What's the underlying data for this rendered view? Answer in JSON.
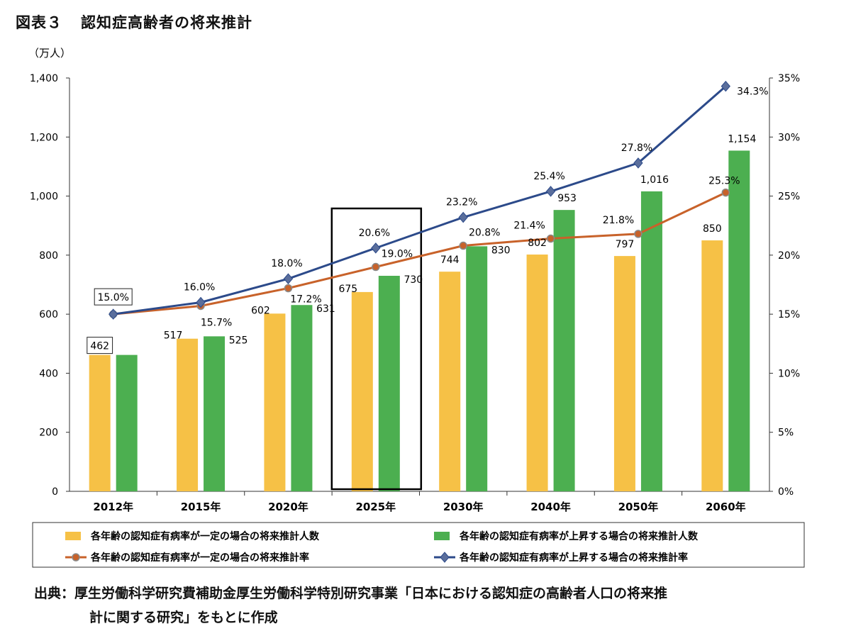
{
  "header": {
    "figure_no": "図表３",
    "title": "認知症高齢者の将来推計"
  },
  "chart_data": {
    "type": "bar",
    "title": "認知症高齢者の将来推計",
    "y_unit_label": "（万人）",
    "categories": [
      "2012年",
      "2015年",
      "2020年",
      "2025年",
      "2030年",
      "2040年",
      "2050年",
      "2060年"
    ],
    "y_left": {
      "min": 0,
      "max": 1400,
      "ticks": [
        "0",
        "200",
        "400",
        "600",
        "800",
        "1,000",
        "1,200",
        "1,400"
      ]
    },
    "y_right": {
      "min": 0,
      "max": 35,
      "ticks": [
        "0%",
        "5%",
        "10%",
        "15%",
        "20%",
        "25%",
        "30%",
        "35%"
      ]
    },
    "series": [
      {
        "name": "各年齢の認知症有病率が一定の場合の将来推計人数",
        "kind": "bar",
        "axis": "left",
        "color": "#f6c146",
        "values": [
          462,
          517,
          602,
          675,
          744,
          802,
          797,
          850
        ],
        "labels": [
          "462",
          "517",
          "602",
          "675",
          "744",
          "802",
          "797",
          "850"
        ]
      },
      {
        "name": "各年齢の認知症有病率が上昇する場合の将来推計人数",
        "kind": "bar",
        "axis": "left",
        "color": "#4caf50",
        "values": [
          462,
          525,
          631,
          730,
          830,
          953,
          1016,
          1154
        ],
        "labels": [
          "",
          "525",
          "631",
          "730",
          "830",
          "953",
          "1,016",
          "1,154"
        ]
      },
      {
        "name": "各年齢の認知症有病率が一定の場合の将来推計率",
        "kind": "line",
        "axis": "right",
        "color": "#c8622a",
        "values": [
          15.0,
          15.7,
          17.2,
          19.0,
          20.8,
          21.4,
          21.8,
          25.3
        ],
        "labels": [
          "",
          "15.7%",
          "17.2%",
          "19.0%",
          "20.8%",
          "21.4%",
          "21.8%",
          "25.3%"
        ]
      },
      {
        "name": "各年齢の認知症有病率が上昇する場合の将来推計率",
        "kind": "line",
        "axis": "right",
        "color": "#2c4a8a",
        "values": [
          15.0,
          16.0,
          18.0,
          20.6,
          23.2,
          25.4,
          27.8,
          34.3
        ],
        "labels": [
          "15.0%",
          "16.0%",
          "18.0%",
          "20.6%",
          "23.2%",
          "25.4%",
          "27.8%",
          "34.3%"
        ]
      }
    ],
    "highlight_category": "2025年",
    "legend_position": "bottom"
  },
  "source": {
    "line1": "出典：厚生労働科学研究費補助金厚生労働科学特別研究事業「日本における認知症の高齢者人口の将来推",
    "line2": "計に関する研究」をもとに作成"
  }
}
